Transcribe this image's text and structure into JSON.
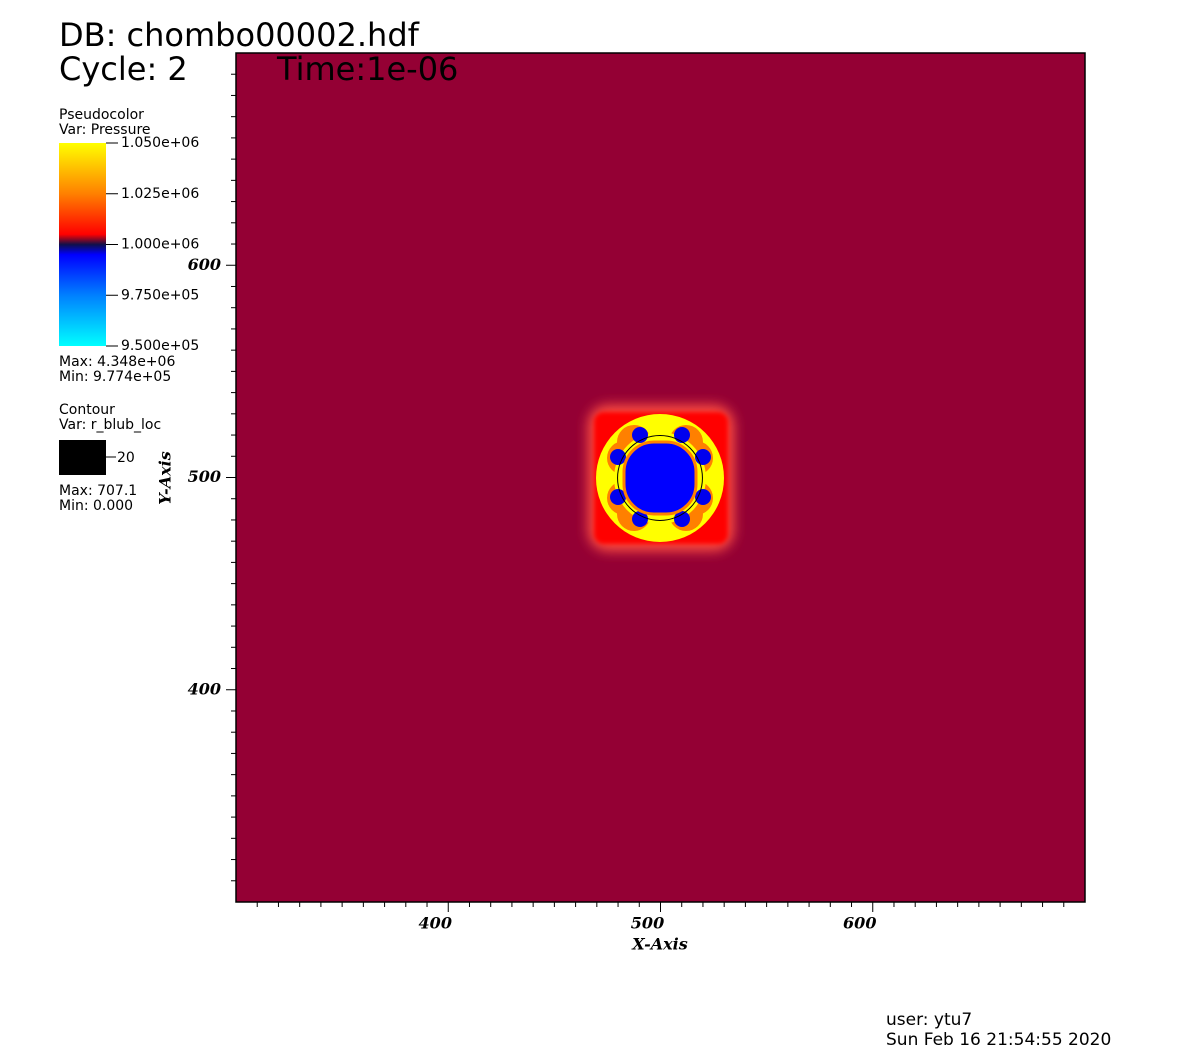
{
  "chart_data": {
    "type": "pseudocolor",
    "title": "DB: chombo00002.hdf",
    "cycle": "Cycle: 2",
    "time": "Time:1e-06",
    "x_label": "X-Axis",
    "y_label": "Y-Axis",
    "xlim": [
      300,
      700
    ],
    "ylim": [
      300,
      700
    ],
    "xticks": [
      400,
      500,
      600
    ],
    "yticks": [
      400,
      500,
      600
    ],
    "xminorticks": [
      310,
      320,
      330,
      340,
      350,
      360,
      370,
      380,
      390,
      410,
      420,
      430,
      440,
      450,
      460,
      470,
      480,
      490,
      510,
      520,
      530,
      540,
      550,
      560,
      570,
      580,
      590,
      610,
      620,
      630,
      640,
      650,
      660,
      670,
      680,
      690
    ],
    "yminorticks": [
      310,
      320,
      330,
      340,
      350,
      360,
      370,
      380,
      390,
      410,
      420,
      430,
      440,
      450,
      460,
      470,
      480,
      490,
      510,
      520,
      530,
      540,
      550,
      560,
      570,
      580,
      590,
      610,
      620,
      630,
      640,
      650,
      660,
      670,
      680,
      690
    ],
    "background_color": "#940034",
    "pseudocolor": {
      "plot": "Pseudocolor",
      "var": "Var: Pressure",
      "range": [
        950000,
        1050000
      ],
      "ticks": [
        {
          "value": 1050000,
          "label": "1.050e+06"
        },
        {
          "value": 1025000,
          "label": "1.025e+06"
        },
        {
          "value": 1000000,
          "label": "1.000e+06"
        },
        {
          "value": 975000,
          "label": "9.750e+05"
        },
        {
          "value": 950000,
          "label": "9.500e+05"
        }
      ],
      "max": "Max:  4.348e+06",
      "min": "Min:  9.774e+05"
    },
    "contour": {
      "plot": "Contour",
      "var": "Var: r_blub_loc",
      "levels": [
        20
      ],
      "color": "#000000",
      "max": "Max:  707.1",
      "min": "Min:  0.000"
    },
    "user": "user: ytu7",
    "date": "Sun Feb 16 21:54:55 2020"
  }
}
